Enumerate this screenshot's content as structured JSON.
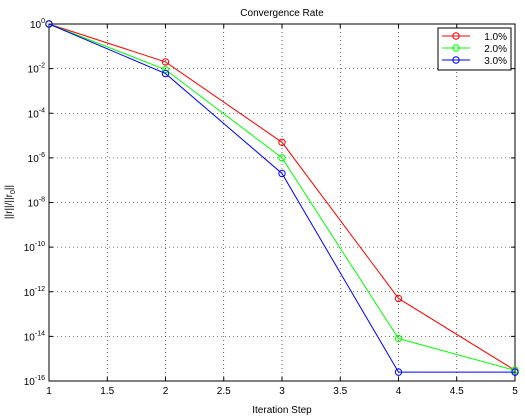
{
  "chart_data": {
    "type": "line",
    "title": "Convergence Rate",
    "xlabel": "Iteration Step",
    "ylabel": "||r||/||r0||",
    "ylabel_parts": [
      "||r||/||r",
      "0",
      "||"
    ],
    "x": [
      1,
      2,
      3,
      4,
      5
    ],
    "xlim": [
      1,
      5
    ],
    "ylim": [
      1e-16,
      1
    ],
    "yscale": "log",
    "grid": true,
    "legend_position": "top-right",
    "x_ticks": [
      "1",
      "1.5",
      "2",
      "2.5",
      "3",
      "3.5",
      "4",
      "4.5",
      "5"
    ],
    "y_ticks": [
      {
        "base": "10",
        "exp": "0"
      },
      {
        "base": "10",
        "exp": "-2"
      },
      {
        "base": "10",
        "exp": "-4"
      },
      {
        "base": "10",
        "exp": "-6"
      },
      {
        "base": "10",
        "exp": "-8"
      },
      {
        "base": "10",
        "exp": "-10"
      },
      {
        "base": "10",
        "exp": "-12"
      },
      {
        "base": "10",
        "exp": "-14"
      },
      {
        "base": "10",
        "exp": "-16"
      }
    ],
    "series": [
      {
        "name": "1.0%",
        "color": "#ff0000",
        "values": [
          1,
          0.02,
          5e-06,
          5e-13,
          3e-16
        ]
      },
      {
        "name": "2.0%",
        "color": "#00ff00",
        "values": [
          1,
          0.009,
          1e-06,
          8e-15,
          3e-16
        ]
      },
      {
        "name": "3.0%",
        "color": "#0000ff",
        "values": [
          1,
          0.006,
          2e-07,
          2.5e-16,
          2.5e-16
        ]
      }
    ]
  }
}
